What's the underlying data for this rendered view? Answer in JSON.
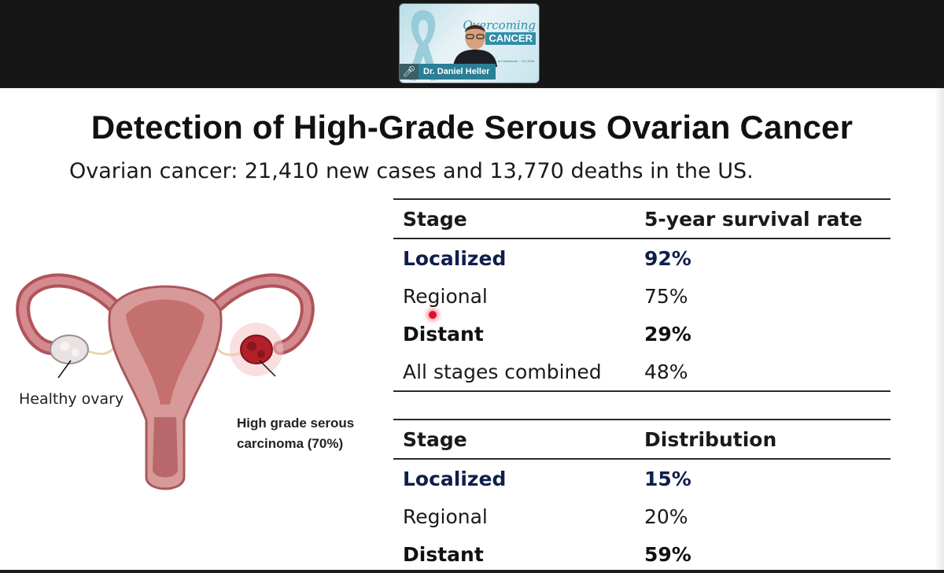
{
  "video": {
    "speaker_name": "Dr. Daniel Heller",
    "logo_line1": "Overcoming",
    "logo_line2": "CANCER",
    "logo_subtext": "... al Conference ... 19, 2026"
  },
  "slide": {
    "title": "Detection of High-Grade Serous Ovarian Cancer",
    "subtitle": "Ovarian cancer: 21,410 new cases and 13,770 deaths in the US.",
    "figure_labels": {
      "healthy": "Healthy ovary",
      "cancer_line1": "High grade serous",
      "cancer_line2": "carcinoma (70%)"
    },
    "survival_table": {
      "headers": [
        "Stage",
        "5-year survival rate"
      ],
      "rows": [
        [
          "Localized",
          "92%"
        ],
        [
          "Regional",
          "75%"
        ],
        [
          "Distant",
          "29%"
        ],
        [
          "All stages combined",
          "48%"
        ]
      ]
    },
    "distribution_table": {
      "headers": [
        "Stage",
        "Distribution"
      ],
      "rows": [
        [
          "Localized",
          "15%"
        ],
        [
          "Regional",
          "20%"
        ],
        [
          "Distant",
          "59%"
        ]
      ]
    }
  },
  "colors": {
    "navy_highlight": "#0f1e4c",
    "laser_pointer": "#e0102a",
    "nametag_bg": "#2b7f94"
  }
}
